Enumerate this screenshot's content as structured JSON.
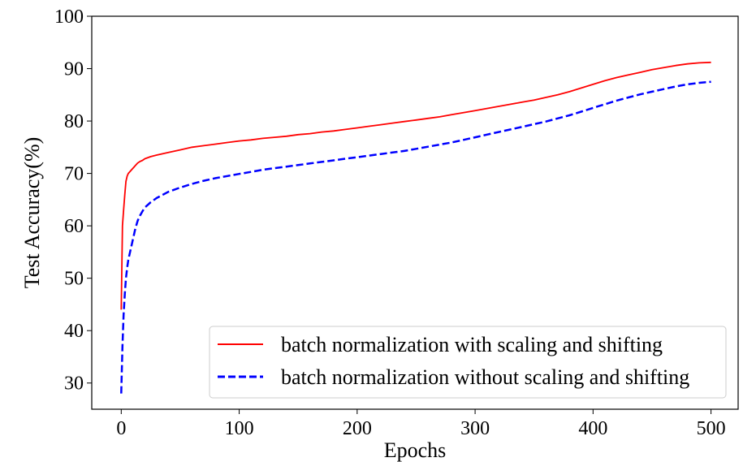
{
  "chart_data": {
    "type": "line",
    "title": "",
    "xlabel": "Epochs",
    "ylabel": "Test Accuracy(%)",
    "xlim": [
      -25,
      523
    ],
    "ylim": [
      25,
      100
    ],
    "xticks": [
      0,
      100,
      200,
      300,
      400,
      500
    ],
    "yticks": [
      30,
      40,
      50,
      60,
      70,
      80,
      90,
      100
    ],
    "grid": false,
    "legend_position": "lower-right",
    "series": [
      {
        "name": "batch normalization with scaling and shifting",
        "color": "#ff0000",
        "style": "solid",
        "x": [
          0,
          1,
          2,
          3,
          4,
          5,
          6,
          8,
          10,
          12,
          14,
          16,
          18,
          20,
          25,
          30,
          40,
          50,
          60,
          70,
          80,
          90,
          100,
          110,
          120,
          130,
          140,
          150,
          160,
          170,
          180,
          190,
          200,
          210,
          220,
          230,
          240,
          250,
          260,
          270,
          280,
          290,
          300,
          310,
          320,
          330,
          340,
          350,
          360,
          370,
          380,
          390,
          400,
          410,
          420,
          430,
          440,
          450,
          460,
          470,
          480,
          490,
          500
        ],
        "values": [
          44.0,
          60.0,
          63.0,
          66.0,
          68.5,
          69.5,
          70.0,
          70.5,
          71.0,
          71.5,
          72.0,
          72.3,
          72.5,
          72.8,
          73.2,
          73.5,
          74.0,
          74.5,
          75.0,
          75.3,
          75.6,
          75.9,
          76.2,
          76.4,
          76.7,
          76.9,
          77.1,
          77.4,
          77.6,
          77.9,
          78.1,
          78.4,
          78.7,
          79.0,
          79.3,
          79.6,
          79.9,
          80.2,
          80.5,
          80.8,
          81.2,
          81.6,
          82.0,
          82.4,
          82.8,
          83.2,
          83.6,
          84.0,
          84.5,
          85.0,
          85.6,
          86.3,
          87.0,
          87.7,
          88.3,
          88.8,
          89.3,
          89.8,
          90.2,
          90.6,
          90.9,
          91.1,
          91.2
        ]
      },
      {
        "name": "batch normalization without scaling and shifting",
        "color": "#0000ff",
        "style": "dashed",
        "x": [
          0,
          1,
          2,
          3,
          4,
          5,
          6,
          8,
          10,
          12,
          14,
          16,
          18,
          20,
          25,
          30,
          40,
          50,
          60,
          70,
          80,
          90,
          100,
          110,
          120,
          130,
          140,
          150,
          160,
          170,
          180,
          190,
          200,
          210,
          220,
          230,
          240,
          250,
          260,
          270,
          280,
          290,
          300,
          310,
          320,
          330,
          340,
          350,
          360,
          370,
          380,
          390,
          400,
          410,
          420,
          430,
          440,
          450,
          460,
          470,
          480,
          490,
          500
        ],
        "values": [
          28.0,
          37.0,
          43.0,
          47.0,
          50.0,
          52.0,
          53.5,
          55.5,
          57.5,
          59.5,
          61.0,
          62.0,
          62.8,
          63.5,
          64.5,
          65.3,
          66.5,
          67.3,
          68.0,
          68.6,
          69.1,
          69.5,
          69.9,
          70.3,
          70.7,
          71.0,
          71.3,
          71.6,
          71.9,
          72.2,
          72.5,
          72.8,
          73.1,
          73.4,
          73.7,
          74.0,
          74.3,
          74.7,
          75.1,
          75.5,
          75.9,
          76.4,
          76.9,
          77.4,
          77.9,
          78.4,
          78.9,
          79.4,
          79.9,
          80.5,
          81.1,
          81.8,
          82.5,
          83.2,
          83.9,
          84.5,
          85.1,
          85.6,
          86.1,
          86.6,
          87.0,
          87.3,
          87.5
        ]
      }
    ]
  }
}
